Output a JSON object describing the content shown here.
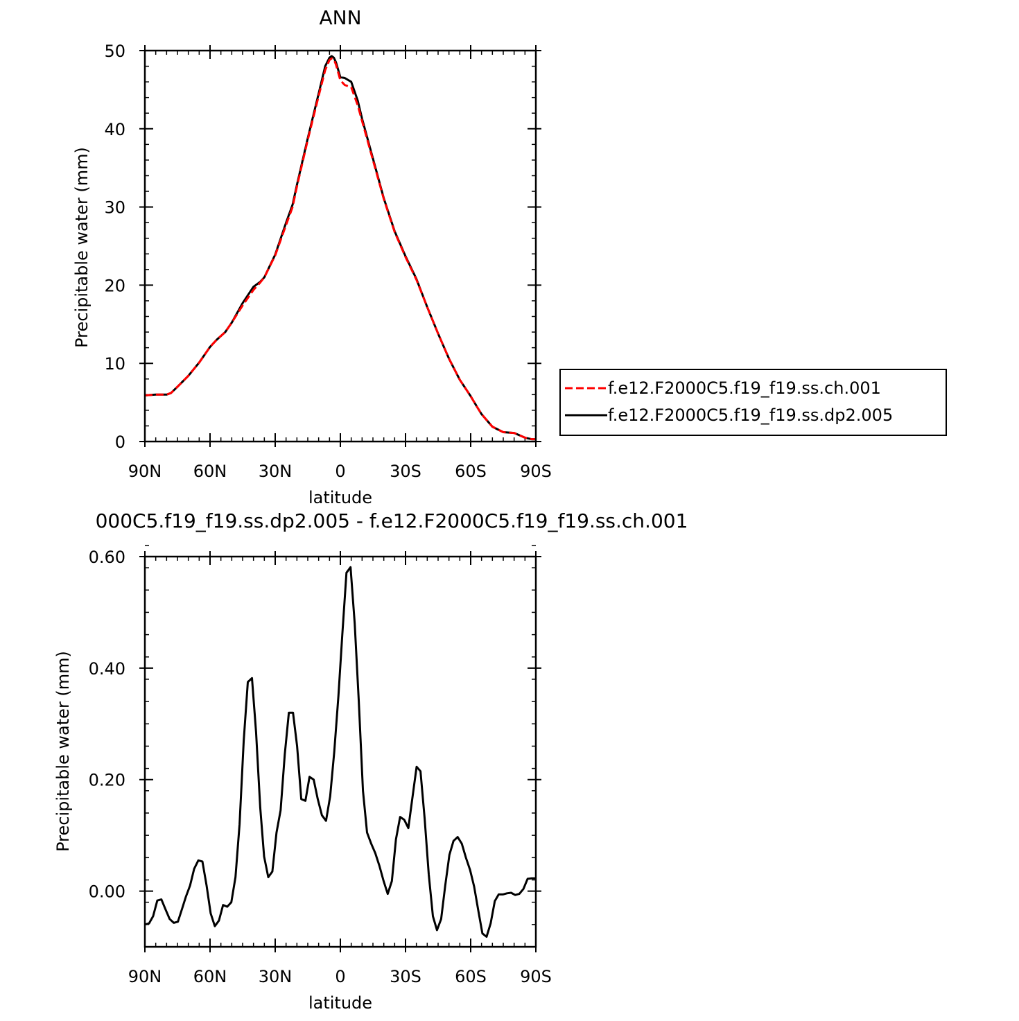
{
  "chart_data": [
    {
      "type": "line",
      "title": "ANN",
      "xlabel": "latitude",
      "ylabel": "Precipitable water (mm)",
      "xlim": [
        90,
        -90
      ],
      "ylim": [
        0,
        50
      ],
      "x_ticks": [
        {
          "value": 90,
          "label": "90N"
        },
        {
          "value": 60,
          "label": "60N"
        },
        {
          "value": 30,
          "label": "30N"
        },
        {
          "value": 0,
          "label": "0"
        },
        {
          "value": -30,
          "label": "30S"
        },
        {
          "value": -60,
          "label": "60S"
        },
        {
          "value": -90,
          "label": "90S"
        }
      ],
      "y_ticks": [
        {
          "value": 0,
          "label": "0"
        },
        {
          "value": 10,
          "label": "10"
        },
        {
          "value": 20,
          "label": "20"
        },
        {
          "value": 30,
          "label": "30"
        },
        {
          "value": 40,
          "label": "40"
        },
        {
          "value": 50,
          "label": "50"
        }
      ],
      "legend_position": "right",
      "series": [
        {
          "name": "f.e12.F2000C5.f19_f19.ss.ch.001",
          "color": "#ff0000",
          "dash": "dashed",
          "x": [
            90,
            85,
            80,
            78,
            75,
            70,
            65,
            60,
            57,
            53,
            50,
            45,
            40,
            37,
            35,
            30,
            25,
            22,
            20,
            15,
            10,
            7,
            5,
            4,
            3,
            2,
            0,
            -2,
            -5,
            -8,
            -10,
            -15,
            -20,
            -25,
            -30,
            -35,
            -40,
            -45,
            -50,
            -55,
            -60,
            -63,
            -65,
            -70,
            -75,
            -80,
            -85,
            -88,
            -90
          ],
          "y": [
            5.9,
            6.0,
            6.0,
            6.2,
            7.0,
            8.4,
            10.1,
            12.1,
            13.0,
            14.0,
            15.2,
            17.4,
            19.4,
            20.3,
            21.0,
            23.8,
            27.7,
            30.0,
            32.6,
            38.6,
            44.2,
            47.5,
            48.8,
            49.0,
            48.9,
            48.2,
            46.2,
            45.6,
            45.3,
            43.0,
            41.0,
            36.0,
            31.0,
            26.8,
            23.6,
            20.7,
            17.2,
            13.8,
            10.6,
            7.9,
            5.8,
            4.4,
            3.5,
            1.9,
            1.2,
            1.1,
            0.5,
            0.3,
            0.3
          ]
        },
        {
          "name": "f.e12.F2000C5.f19_f19.ss.dp2.005",
          "color": "#000000",
          "dash": "solid",
          "x": [
            90,
            85,
            80,
            78,
            75,
            70,
            65,
            60,
            57,
            53,
            50,
            45,
            40,
            37,
            35,
            30,
            25,
            22,
            20,
            15,
            10,
            7,
            5,
            4,
            3,
            2,
            0,
            -2,
            -5,
            -8,
            -10,
            -15,
            -20,
            -25,
            -30,
            -35,
            -40,
            -45,
            -50,
            -55,
            -60,
            -63,
            -65,
            -70,
            -75,
            -80,
            -85,
            -88,
            -90
          ],
          "y": [
            5.9,
            6.0,
            6.0,
            6.2,
            7.0,
            8.4,
            10.1,
            12.1,
            13.0,
            14.0,
            15.2,
            17.7,
            19.8,
            20.4,
            21.0,
            23.9,
            28.0,
            30.3,
            32.8,
            38.8,
            44.5,
            48.0,
            49.1,
            49.3,
            49.1,
            48.5,
            46.6,
            46.5,
            46.0,
            43.6,
            41.3,
            36.2,
            31.1,
            26.9,
            23.7,
            20.8,
            17.2,
            13.8,
            10.6,
            7.9,
            5.8,
            4.4,
            3.5,
            1.9,
            1.2,
            1.1,
            0.5,
            0.3,
            0.3
          ]
        }
      ]
    },
    {
      "type": "line",
      "title": "000C5.f19_f19.ss.dp2.005 - f.e12.F2000C5.f19_f19.ss.ch.001",
      "xlabel": "latitude",
      "ylabel": "Precipitable water (mm)",
      "xlim": [
        90,
        -90
      ],
      "ylim": [
        -0.1,
        0.6
      ],
      "x_ticks": [
        {
          "value": 90,
          "label": "90N"
        },
        {
          "value": 60,
          "label": "60N"
        },
        {
          "value": 30,
          "label": "30N"
        },
        {
          "value": 0,
          "label": "0"
        },
        {
          "value": -30,
          "label": "30S"
        },
        {
          "value": -60,
          "label": "60S"
        },
        {
          "value": -90,
          "label": "90S"
        }
      ],
      "y_ticks": [
        {
          "value": 0.0,
          "label": "0.00"
        },
        {
          "value": 0.2,
          "label": "0.20"
        },
        {
          "value": 0.4,
          "label": "0.40"
        },
        {
          "value": 0.6,
          "label": "0.60"
        }
      ],
      "series": [
        {
          "color": "#000000",
          "dash": "solid",
          "x": [
            90,
            88.1,
            86.2,
            84.3,
            82.4,
            80.5,
            78.6,
            76.7,
            74.8,
            72.9,
            71.1,
            69.2,
            67.3,
            65.4,
            63.5,
            61.6,
            59.7,
            57.8,
            55.9,
            54.0,
            52.1,
            50.2,
            48.3,
            46.4,
            44.5,
            42.6,
            40.7,
            38.8,
            36.9,
            35.1,
            33.2,
            31.3,
            29.4,
            27.5,
            25.6,
            23.7,
            21.8,
            19.9,
            18.0,
            16.1,
            14.2,
            12.3,
            10.4,
            8.5,
            6.6,
            4.7,
            2.8,
            0.9,
            -0.9,
            -2.8,
            -4.7,
            -6.6,
            -8.5,
            -10.4,
            -12.3,
            -14.2,
            -16.1,
            -18.0,
            -19.9,
            -21.8,
            -23.7,
            -25.6,
            -27.5,
            -29.4,
            -31.3,
            -33.2,
            -35.1,
            -36.9,
            -38.8,
            -40.7,
            -42.6,
            -44.5,
            -46.4,
            -48.3,
            -50.2,
            -52.1,
            -54.0,
            -55.9,
            -57.8,
            -59.7,
            -61.6,
            -63.5,
            -65.4,
            -67.3,
            -69.2,
            -71.1,
            -72.9,
            -74.8,
            -76.7,
            -78.6,
            -80.5,
            -82.4,
            -84.3,
            -86.2,
            -88.1,
            -90
          ],
          "y": [
            -0.06,
            -0.058,
            -0.045,
            -0.017,
            -0.015,
            -0.033,
            -0.05,
            -0.057,
            -0.055,
            -0.032,
            -0.01,
            0.01,
            0.04,
            0.055,
            0.053,
            0.01,
            -0.04,
            -0.063,
            -0.053,
            -0.025,
            -0.028,
            -0.02,
            0.025,
            0.12,
            0.27,
            0.375,
            0.382,
            0.285,
            0.15,
            0.062,
            0.025,
            0.035,
            0.105,
            0.145,
            0.245,
            0.32,
            0.32,
            0.26,
            0.165,
            0.162,
            0.205,
            0.2,
            0.165,
            0.136,
            0.126,
            0.17,
            0.25,
            0.35,
            0.46,
            0.571,
            0.581,
            0.48,
            0.34,
            0.18,
            0.105,
            0.085,
            0.068,
            0.045,
            0.018,
            -0.005,
            0.018,
            0.093,
            0.133,
            0.128,
            0.113,
            0.168,
            0.223,
            0.215,
            0.13,
            0.03,
            -0.045,
            -0.07,
            -0.05,
            0.01,
            0.065,
            0.09,
            0.097,
            0.085,
            0.06,
            0.038,
            0.008,
            -0.035,
            -0.076,
            -0.082,
            -0.058,
            -0.018,
            -0.006,
            -0.006,
            -0.004,
            -0.003,
            -0.007,
            -0.005,
            0.004,
            0.022,
            0.023,
            0.023
          ]
        }
      ]
    }
  ]
}
